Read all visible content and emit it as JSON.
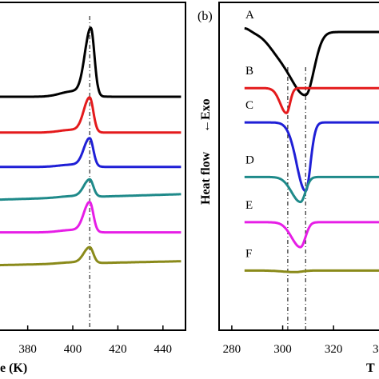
{
  "chart_data": [
    {
      "panel": "a",
      "type": "line",
      "xlabel_visible_fragment": "e (K)",
      "x_ticks": [
        380,
        400,
        420,
        440
      ],
      "xlim": [
        367,
        450
      ],
      "series": [
        {
          "color": "#000000",
          "offset": 0.0,
          "peak_height": 4.3,
          "peak_x": 408,
          "baseline_rise": 0.0
        },
        {
          "color": "#e41a1c",
          "offset": -2.3,
          "peak_height": 2.2,
          "peak_x": 407.5,
          "baseline_rise": 0.0
        },
        {
          "color": "#1f1fd6",
          "offset": -4.5,
          "peak_height": 1.8,
          "peak_x": 407.5,
          "baseline_rise": 0.0
        },
        {
          "color": "#1f8a8a",
          "offset": -6.6,
          "peak_height": 1.1,
          "peak_x": 407.5,
          "baseline_rise": 0.35
        },
        {
          "color": "#e61ee6",
          "offset": -8.7,
          "peak_height": 1.9,
          "peak_x": 407.5,
          "baseline_rise": 0.0
        },
        {
          "color": "#8a8a1a",
          "offset": -10.8,
          "peak_height": 1.0,
          "peak_x": 407.5,
          "baseline_rise": 0.25
        }
      ],
      "reference_line_x": 407.5
    },
    {
      "panel": "b",
      "panel_tag": "(b)",
      "type": "line",
      "ylabel": "Heat flow",
      "ylabel_arrow": "←Exo",
      "xlabel_visible_fragment": "T",
      "x_ticks": [
        280,
        300,
        320
      ],
      "x_tick_partial": "3",
      "xlim": [
        275,
        341
      ],
      "series": [
        {
          "name": "A",
          "color": "#000000",
          "offset": 0.0,
          "dip_depth": 4.0,
          "dip_x": 309,
          "width": 6
        },
        {
          "name": "B",
          "color": "#e41a1c",
          "offset": -3.6,
          "dip_depth": 1.6,
          "dip_x": 301.5,
          "width": 2.5
        },
        {
          "name": "C",
          "color": "#1f1fd6",
          "offset": -5.8,
          "dip_depth": 4.4,
          "dip_x": 309,
          "width": 3.5
        },
        {
          "name": "D",
          "color": "#1f8a8a",
          "offset": -9.3,
          "dip_depth": 1.6,
          "dip_x": 307,
          "width": 3.5
        },
        {
          "name": "E",
          "color": "#e61ee6",
          "offset": -12.2,
          "dip_depth": 1.6,
          "dip_x": 307,
          "width": 3.5
        },
        {
          "name": "F",
          "color": "#8a8a1a",
          "offset": -15.3,
          "dip_depth": 0.1,
          "dip_x": 305,
          "width": 5
        }
      ],
      "reference_lines_x": [
        302,
        309
      ]
    }
  ]
}
